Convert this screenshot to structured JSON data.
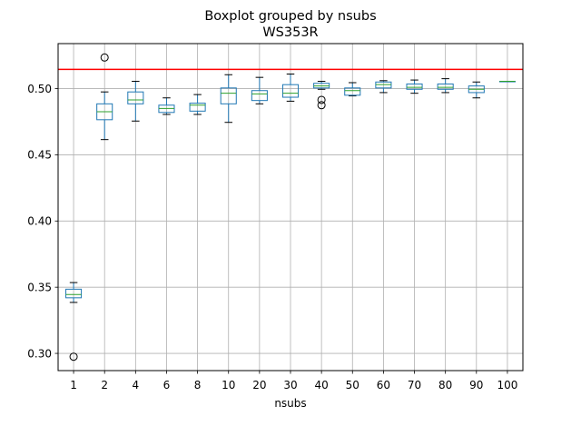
{
  "chart_data": {
    "type": "boxplot",
    "title": "Boxplot grouped by nsubs",
    "subtitle": "WS353R",
    "xlabel": "nsubs",
    "ylabel": "",
    "categories": [
      "1",
      "2",
      "4",
      "6",
      "8",
      "10",
      "20",
      "30",
      "40",
      "50",
      "60",
      "70",
      "80",
      "90",
      "100"
    ],
    "ylim": [
      0.287,
      0.534
    ],
    "yticks": [
      0.3,
      0.35,
      0.4,
      0.45,
      0.5
    ],
    "ytick_labels": [
      "0.30",
      "0.35",
      "0.40",
      "0.45",
      "0.50"
    ],
    "grid": true,
    "reference_line": {
      "y": 0.5145,
      "color": "#ff0000"
    },
    "box_color": "#1f77b4",
    "median_color": "#2ca02c",
    "boxes": [
      {
        "whisker_low": 0.3385,
        "q1": 0.342,
        "median": 0.3445,
        "q3": 0.3485,
        "whisker_high": 0.3535,
        "outliers": [
          0.2975
        ]
      },
      {
        "whisker_low": 0.4615,
        "q1": 0.4765,
        "median": 0.4825,
        "q3": 0.4885,
        "whisker_high": 0.4975,
        "outliers": [
          0.5235
        ]
      },
      {
        "whisker_low": 0.4755,
        "q1": 0.4885,
        "median": 0.4915,
        "q3": 0.4975,
        "whisker_high": 0.5055,
        "outliers": []
      },
      {
        "whisker_low": 0.4805,
        "q1": 0.482,
        "median": 0.485,
        "q3": 0.4875,
        "whisker_high": 0.493,
        "outliers": []
      },
      {
        "whisker_low": 0.4805,
        "q1": 0.483,
        "median": 0.4875,
        "q3": 0.489,
        "whisker_high": 0.4955,
        "outliers": []
      },
      {
        "whisker_low": 0.4745,
        "q1": 0.4885,
        "median": 0.4965,
        "q3": 0.5005,
        "whisker_high": 0.5105,
        "outliers": []
      },
      {
        "whisker_low": 0.4885,
        "q1": 0.491,
        "median": 0.496,
        "q3": 0.4985,
        "whisker_high": 0.5085,
        "outliers": []
      },
      {
        "whisker_low": 0.4905,
        "q1": 0.4935,
        "median": 0.4965,
        "q3": 0.503,
        "whisker_high": 0.511,
        "outliers": []
      },
      {
        "whisker_low": 0.4995,
        "q1": 0.5005,
        "median": 0.502,
        "q3": 0.504,
        "whisker_high": 0.5055,
        "outliers": [
          0.4915,
          0.4875
        ]
      },
      {
        "whisker_low": 0.4945,
        "q1": 0.495,
        "median": 0.4985,
        "q3": 0.5005,
        "whisker_high": 0.5045,
        "outliers": []
      },
      {
        "whisker_low": 0.497,
        "q1": 0.5005,
        "median": 0.503,
        "q3": 0.505,
        "whisker_high": 0.506,
        "outliers": []
      },
      {
        "whisker_low": 0.4965,
        "q1": 0.4995,
        "median": 0.501,
        "q3": 0.5035,
        "whisker_high": 0.5065,
        "outliers": []
      },
      {
        "whisker_low": 0.497,
        "q1": 0.4995,
        "median": 0.501,
        "q3": 0.5035,
        "whisker_high": 0.5075,
        "outliers": []
      },
      {
        "whisker_low": 0.493,
        "q1": 0.497,
        "median": 0.4995,
        "q3": 0.502,
        "whisker_high": 0.505,
        "outliers": []
      },
      {
        "whisker_low": 0.5055,
        "q1": 0.5055,
        "median": 0.5055,
        "q3": 0.5055,
        "whisker_high": 0.5055,
        "outliers": []
      }
    ]
  }
}
